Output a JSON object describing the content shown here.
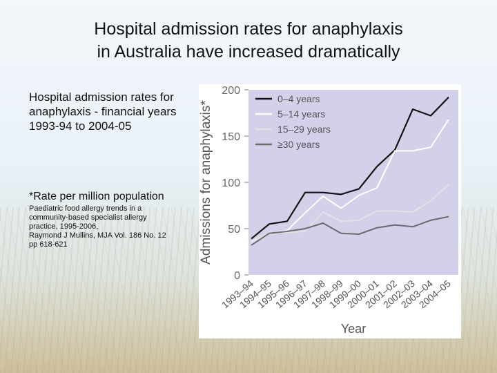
{
  "slide": {
    "title_line1": "Hospital admission rates for anaphylaxis",
    "title_line2": "in Australia have increased dramatically",
    "description": "Hospital admission rates for anaphylaxis - financial years 1993-94 to 2004-05",
    "rate_note": "*Rate per million population",
    "reference_lines": [
      "Paediatric food allergy trends in a",
      "community-based specialist allergy",
      "practice, 1995-2006,",
      "Raymond J Mullins, MJA Vol. 186 No. 12",
      "pp 618-621"
    ]
  },
  "colors": {
    "plot_background": "#d3d0ea",
    "frame_background": "#ffffff",
    "series": [
      "#111111",
      "#ffffff",
      "#e2e2e2",
      "#6b6b6b"
    ]
  },
  "chart_data": {
    "type": "line",
    "title": "",
    "xlabel": "Year",
    "ylabel": "Admissions for anaphylaxis*",
    "categories": [
      "1993–94",
      "1994–95",
      "1995–96",
      "1996–97",
      "1997–98",
      "1998–99",
      "1999–00",
      "2000–01",
      "2001–02",
      "2002–03",
      "2003–04",
      "2004–05"
    ],
    "ylim": [
      0,
      200
    ],
    "yticks": [
      0,
      50,
      100,
      150,
      200
    ],
    "grid": false,
    "legend_position": "top-left",
    "series": [
      {
        "name": "0–4 years",
        "values": [
          39,
          55,
          58,
          89,
          89,
          87,
          93,
          117,
          135,
          179,
          172,
          192
        ]
      },
      {
        "name": "5–14 years",
        "values": [
          36,
          45,
          48,
          67,
          85,
          72,
          86,
          94,
          134,
          134,
          138,
          168
        ]
      },
      {
        "name": "15–29 years",
        "values": [
          35,
          46,
          46,
          47,
          68,
          58,
          59,
          69,
          69,
          68,
          80,
          98
        ]
      },
      {
        "name": "≥30 years",
        "values": [
          32,
          45,
          47,
          50,
          56,
          45,
          44,
          51,
          54,
          52,
          59,
          63
        ]
      }
    ]
  }
}
